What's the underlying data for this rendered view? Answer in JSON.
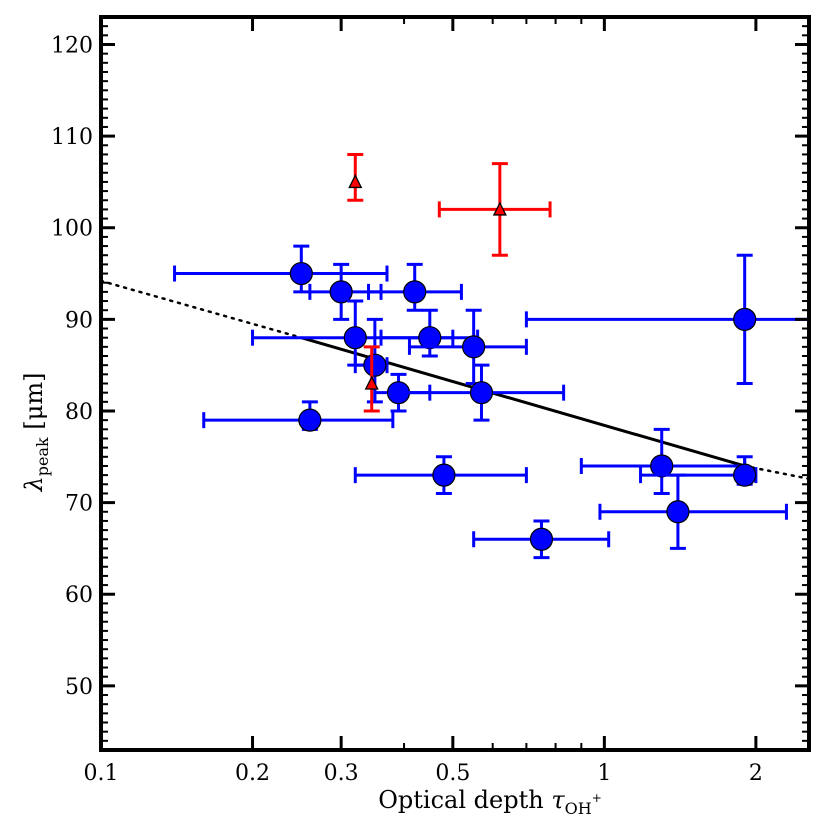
{
  "chart_data": {
    "type": "scatter",
    "xscale": "log",
    "xlabel": {
      "prefix": "Optical depth ",
      "symbol": "τ",
      "subscript": "OH",
      "superscript": "+"
    },
    "ylabel": {
      "symbol": "λ",
      "subscript": "peak",
      "unit": " [μm]"
    },
    "xlim": [
      0.1,
      2.55
    ],
    "ylim": [
      43,
      123
    ],
    "x_ticks": [
      {
        "value": 0.1,
        "label": "0.1"
      },
      {
        "value": 0.2,
        "label": "0.2"
      },
      {
        "value": 0.3,
        "label": "0.3"
      },
      {
        "value": 0.5,
        "label": "0.5"
      },
      {
        "value": 1,
        "label": "1"
      },
      {
        "value": 2,
        "label": "2"
      }
    ],
    "y_ticks": [
      {
        "value": 50,
        "label": "50"
      },
      {
        "value": 60,
        "label": "60"
      },
      {
        "value": 70,
        "label": "70"
      },
      {
        "value": 80,
        "label": "80"
      },
      {
        "value": 90,
        "label": "90"
      },
      {
        "value": 100,
        "label": "100"
      },
      {
        "value": 110,
        "label": "110"
      },
      {
        "value": 120,
        "label": "120"
      }
    ],
    "series": [
      {
        "name": "blue circles",
        "color": "#0000ff",
        "marker": "circle",
        "points": [
          {
            "x": 0.25,
            "y": 95,
            "xerr": [
              0.14,
              0.37
            ],
            "yerr": [
              93,
              98
            ]
          },
          {
            "x": 0.3,
            "y": 93,
            "xerr": [
              0.26,
              0.36
            ],
            "yerr": [
              90,
              96
            ]
          },
          {
            "x": 0.42,
            "y": 93,
            "xerr": [
              0.34,
              0.52
            ],
            "yerr": [
              91,
              96
            ]
          },
          {
            "x": 0.32,
            "y": 88,
            "xerr": [
              0.2,
              0.5
            ],
            "yerr": [
              85,
              92
            ]
          },
          {
            "x": 0.45,
            "y": 88,
            "xerr": [
              0.36,
              0.56
            ],
            "yerr": [
              86,
              91
            ]
          },
          {
            "x": 0.55,
            "y": 87,
            "xerr": [
              0.41,
              0.7
            ],
            "yerr": [
              83,
              91
            ]
          },
          {
            "x": 0.35,
            "y": 85,
            "xerr": [
              0.32,
              0.37
            ],
            "yerr": [
              81,
              90
            ]
          },
          {
            "x": 0.39,
            "y": 82,
            "xerr": [
              0.35,
              0.45
            ],
            "yerr": [
              80,
              84
            ]
          },
          {
            "x": 0.57,
            "y": 82,
            "xerr": [
              0.39,
              0.83
            ],
            "yerr": [
              79,
              85
            ]
          },
          {
            "x": 0.26,
            "y": 79,
            "xerr": [
              0.16,
              0.38
            ],
            "yerr": [
              78,
              81
            ]
          },
          {
            "x": 0.48,
            "y": 73,
            "xerr": [
              0.32,
              0.7
            ],
            "yerr": [
              71,
              75
            ]
          },
          {
            "x": 1.3,
            "y": 74,
            "xerr": [
              0.9,
              1.9
            ],
            "yerr": [
              71,
              78
            ]
          },
          {
            "x": 1.9,
            "y": 73,
            "xerr": [
              1.18,
              2.0
            ],
            "yerr": [
              72,
              75
            ]
          },
          {
            "x": 1.4,
            "y": 69,
            "xerr": [
              0.98,
              2.3
            ],
            "yerr": [
              65,
              73
            ]
          },
          {
            "x": 0.75,
            "y": 66,
            "xerr": [
              0.55,
              1.02
            ],
            "yerr": [
              64,
              68
            ]
          },
          {
            "x": 1.9,
            "y": 90,
            "xerr": [
              0.7,
              2.55
            ],
            "yerr": [
              83,
              97
            ]
          }
        ]
      },
      {
        "name": "red triangles",
        "color": "#ff0000",
        "marker": "triangle",
        "points": [
          {
            "x": 0.32,
            "y": 105,
            "xerr": null,
            "yerr": [
              103,
              108
            ]
          },
          {
            "x": 0.62,
            "y": 102,
            "xerr": [
              0.47,
              0.78
            ],
            "yerr": [
              97,
              107
            ]
          },
          {
            "x": 0.345,
            "y": 83,
            "xerr": null,
            "yerr": [
              80,
              87
            ]
          }
        ]
      }
    ],
    "fit_line": {
      "style": "solid black with dotted extrapolation",
      "solid_from": {
        "x": 0.25,
        "y": 88
      },
      "solid_to": {
        "x": 1.9,
        "y": 74
      },
      "dotted_start": {
        "x": 0.1,
        "y": 94.2
      },
      "dotted_end": {
        "x": 2.55,
        "y": 72.6
      }
    }
  }
}
